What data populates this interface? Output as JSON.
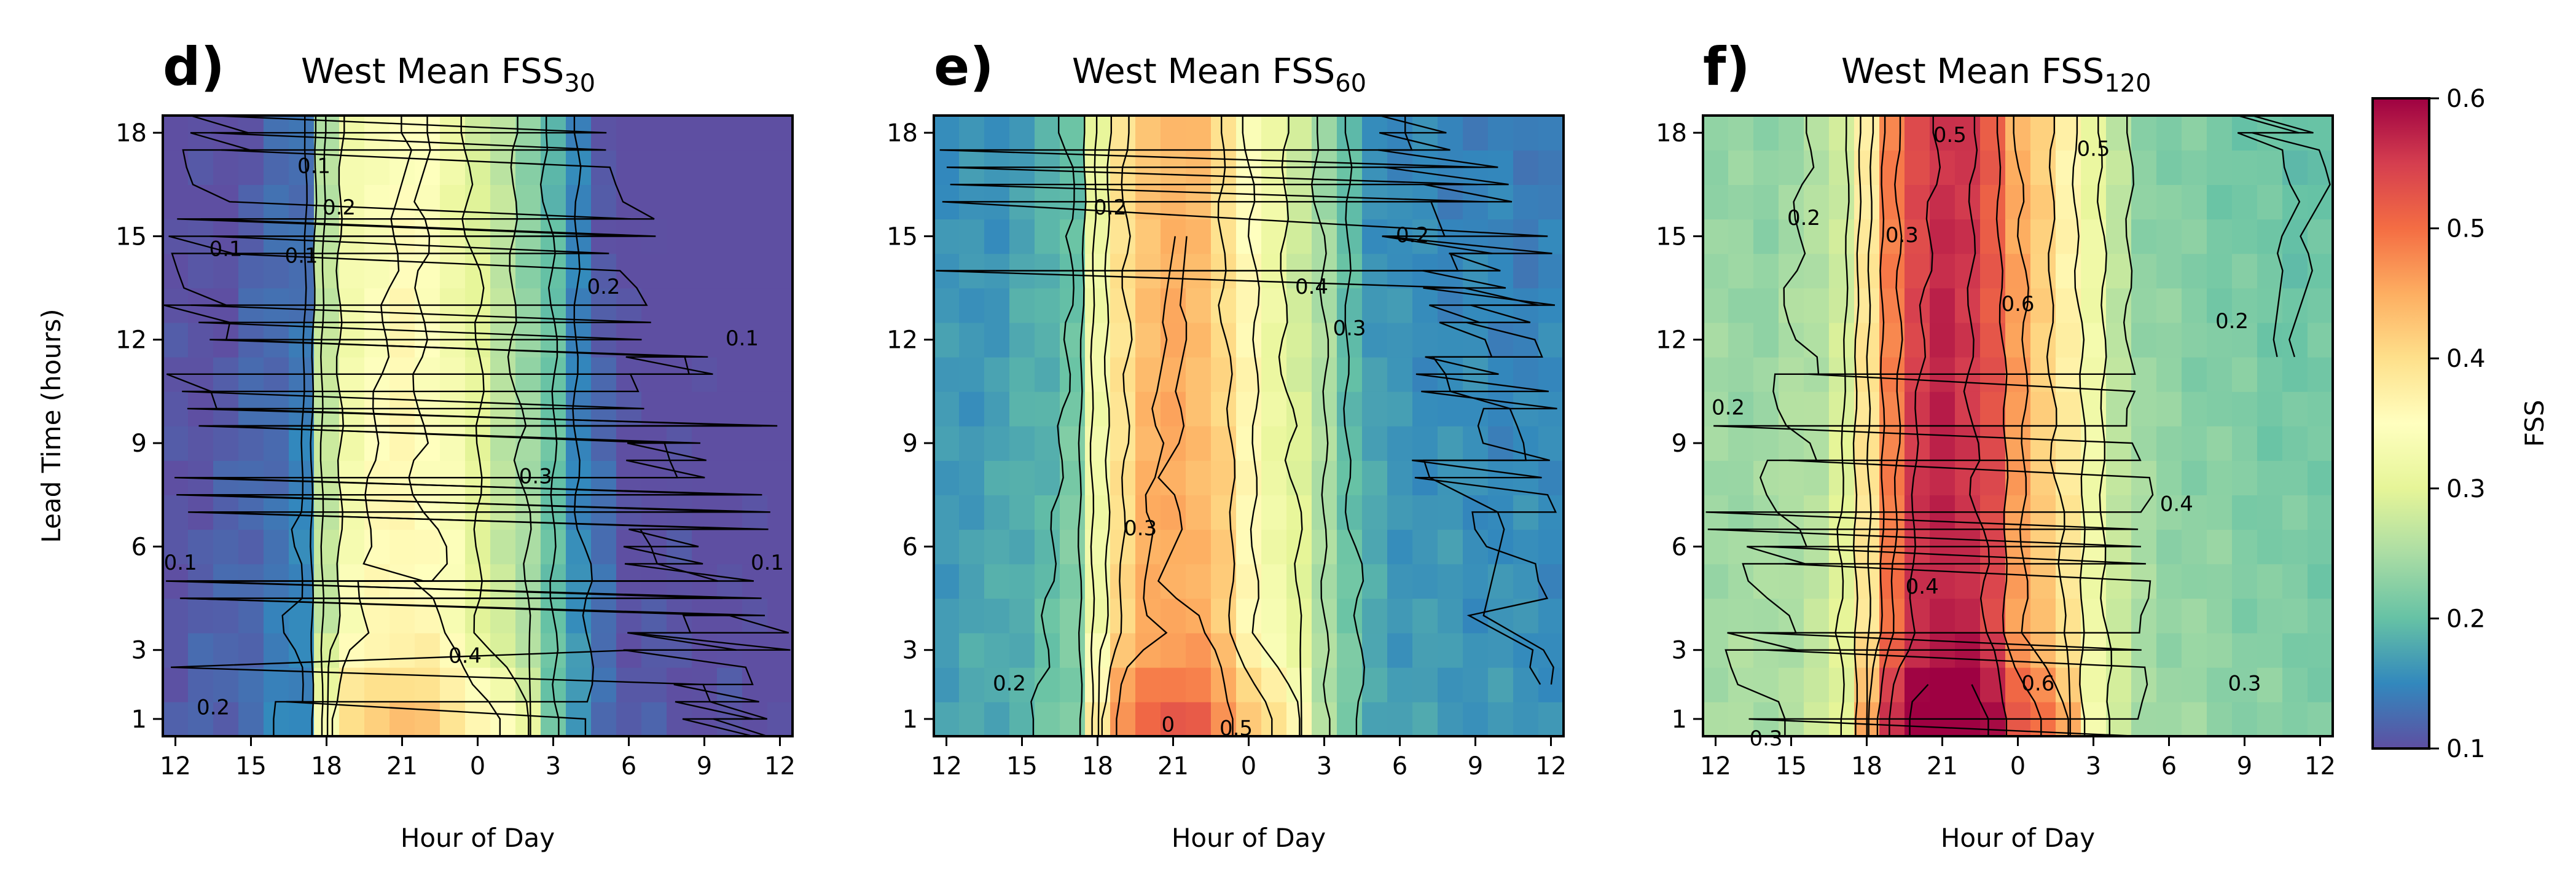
{
  "colormap": {
    "name": "Spectral_r",
    "stops": [
      "#5e4fa2",
      "#3288bd",
      "#66c2a5",
      "#abdda4",
      "#e6f598",
      "#ffffbf",
      "#fee08b",
      "#fdae61",
      "#f46d43",
      "#d53e4f",
      "#9e0142"
    ],
    "vmin": 0.1,
    "vmax": 0.6
  },
  "colorbar": {
    "label": "FSS",
    "ticks": [
      "0.1",
      "0.2",
      "0.3",
      "0.4",
      "0.5",
      "0.6"
    ]
  },
  "chart_data": [
    {
      "type": "heatmap",
      "letter": "d)",
      "title_main": "West Mean FSS",
      "title_sub": "30",
      "xlabel": "Hour of Day",
      "ylabel": "Lead Time (hours)",
      "x_tick_labels": [
        "12",
        "15",
        "18",
        "21",
        "0",
        "3",
        "6",
        "9",
        "12"
      ],
      "y_tick_labels": [
        "18",
        "15",
        "12",
        "9",
        "6",
        "3",
        "1"
      ],
      "x_cells": 25,
      "y_range": [
        1,
        18
      ],
      "profile": {
        "points": [
          [
            -1,
            0.11
          ],
          [
            2,
            0.12
          ],
          [
            4,
            0.14
          ],
          [
            5,
            0.15
          ],
          [
            6,
            0.28
          ],
          [
            7,
            0.34
          ],
          [
            8,
            0.36
          ],
          [
            9,
            0.37
          ],
          [
            10,
            0.36
          ],
          [
            11,
            0.34
          ],
          [
            12,
            0.31
          ],
          [
            13,
            0.28
          ],
          [
            14,
            0.25
          ],
          [
            15,
            0.21
          ],
          [
            16,
            0.16
          ],
          [
            17,
            0.13
          ],
          [
            18,
            0.11
          ],
          [
            23,
            0.1
          ]
        ],
        "lead_decay": 0.02,
        "early_boost": 0.06
      },
      "contour_labels": [
        {
          "text": "0.1",
          "x": -6.5,
          "y": 17
        },
        {
          "text": "0.1",
          "x": -10,
          "y": 14.6
        },
        {
          "text": "0.1",
          "x": -7,
          "y": 14.4
        },
        {
          "text": "0.2",
          "x": -5.5,
          "y": 15.8
        },
        {
          "text": "0.2",
          "x": 5,
          "y": 13.5
        },
        {
          "text": "0.1",
          "x": 10.5,
          "y": 12
        },
        {
          "text": "0.3",
          "x": 2.3,
          "y": 8
        },
        {
          "text": "0.4",
          "x": -0.5,
          "y": 2.8
        },
        {
          "text": "0.2",
          "x": -10.5,
          "y": 1.3
        },
        {
          "text": "0.1",
          "x": -11.8,
          "y": 5.5
        },
        {
          "text": "0.1",
          "x": 11.5,
          "y": 5.5
        }
      ]
    },
    {
      "type": "heatmap",
      "letter": "e)",
      "title_main": "West Mean FSS",
      "title_sub": "60",
      "xlabel": "Hour of Day",
      "ylabel": "",
      "x_tick_labels": [
        "12",
        "15",
        "18",
        "21",
        "0",
        "3",
        "6",
        "9",
        "12"
      ],
      "y_tick_labels": [
        "18",
        "15",
        "12",
        "9",
        "6",
        "3",
        "1"
      ],
      "x_cells": 25,
      "y_range": [
        1,
        18
      ],
      "profile": {
        "points": [
          [
            -1,
            0.17
          ],
          [
            2,
            0.18
          ],
          [
            4,
            0.2
          ],
          [
            5,
            0.22
          ],
          [
            6,
            0.33
          ],
          [
            7,
            0.41
          ],
          [
            8,
            0.45
          ],
          [
            9,
            0.46
          ],
          [
            10,
            0.45
          ],
          [
            11,
            0.42
          ],
          [
            12,
            0.37
          ],
          [
            13,
            0.33
          ],
          [
            14,
            0.3
          ],
          [
            15,
            0.26
          ],
          [
            16,
            0.21
          ],
          [
            17,
            0.18
          ],
          [
            18,
            0.17
          ],
          [
            23,
            0.16
          ]
        ],
        "lead_decay": 0.02,
        "early_boost": 0.06
      },
      "contour_labels": [
        {
          "text": "0.2",
          "x": -5.5,
          "y": 15.8
        },
        {
          "text": "0.4",
          "x": 2.5,
          "y": 13.5
        },
        {
          "text": "0.3",
          "x": 4,
          "y": 12.3
        },
        {
          "text": "0.2",
          "x": 6.5,
          "y": 15
        },
        {
          "text": "0.3",
          "x": -4.3,
          "y": 6.5
        },
        {
          "text": "0.2",
          "x": -9.5,
          "y": 2
        },
        {
          "text": "0.5",
          "x": -0.5,
          "y": 0.7
        },
        {
          "text": "0",
          "x": -3.2,
          "y": 0.8
        }
      ]
    },
    {
      "type": "heatmap",
      "letter": "f)",
      "title_main": "West Mean FSS",
      "title_sub": "120",
      "xlabel": "Hour of Day",
      "ylabel": "",
      "x_tick_labels": [
        "12",
        "15",
        "18",
        "21",
        "0",
        "3",
        "6",
        "9",
        "12"
      ],
      "y_tick_labels": [
        "18",
        "15",
        "12",
        "9",
        "6",
        "3",
        "1"
      ],
      "x_cells": 25,
      "y_range": [
        1,
        18
      ],
      "profile": {
        "points": [
          [
            -1,
            0.25
          ],
          [
            2,
            0.25
          ],
          [
            4,
            0.27
          ],
          [
            5,
            0.3
          ],
          [
            6,
            0.4
          ],
          [
            7,
            0.5
          ],
          [
            8,
            0.56
          ],
          [
            9,
            0.58
          ],
          [
            10,
            0.57
          ],
          [
            11,
            0.54
          ],
          [
            12,
            0.47
          ],
          [
            13,
            0.43
          ],
          [
            14,
            0.39
          ],
          [
            15,
            0.33
          ],
          [
            16,
            0.28
          ],
          [
            17,
            0.25
          ],
          [
            18,
            0.24
          ],
          [
            23,
            0.22
          ]
        ],
        "lead_decay": 0.02,
        "early_boost": 0.06
      },
      "contour_labels": [
        {
          "text": "0.2",
          "x": -8.5,
          "y": 15.5
        },
        {
          "text": "0.3",
          "x": -4.6,
          "y": 15
        },
        {
          "text": "0.5",
          "x": -2.7,
          "y": 17.9
        },
        {
          "text": "0.5",
          "x": 3,
          "y": 17.5
        },
        {
          "text": "0.6",
          "x": 0,
          "y": 13
        },
        {
          "text": "0.2",
          "x": 8.5,
          "y": 12.5
        },
        {
          "text": "0.2",
          "x": -11.5,
          "y": 10
        },
        {
          "text": "0.4",
          "x": 6.3,
          "y": 7.2
        },
        {
          "text": "0.4",
          "x": -3.8,
          "y": 4.8
        },
        {
          "text": "0.6",
          "x": 0.8,
          "y": 2
        },
        {
          "text": "0.3",
          "x": 9,
          "y": 2
        },
        {
          "text": "0.3",
          "x": -10,
          "y": 0.4
        }
      ]
    }
  ]
}
